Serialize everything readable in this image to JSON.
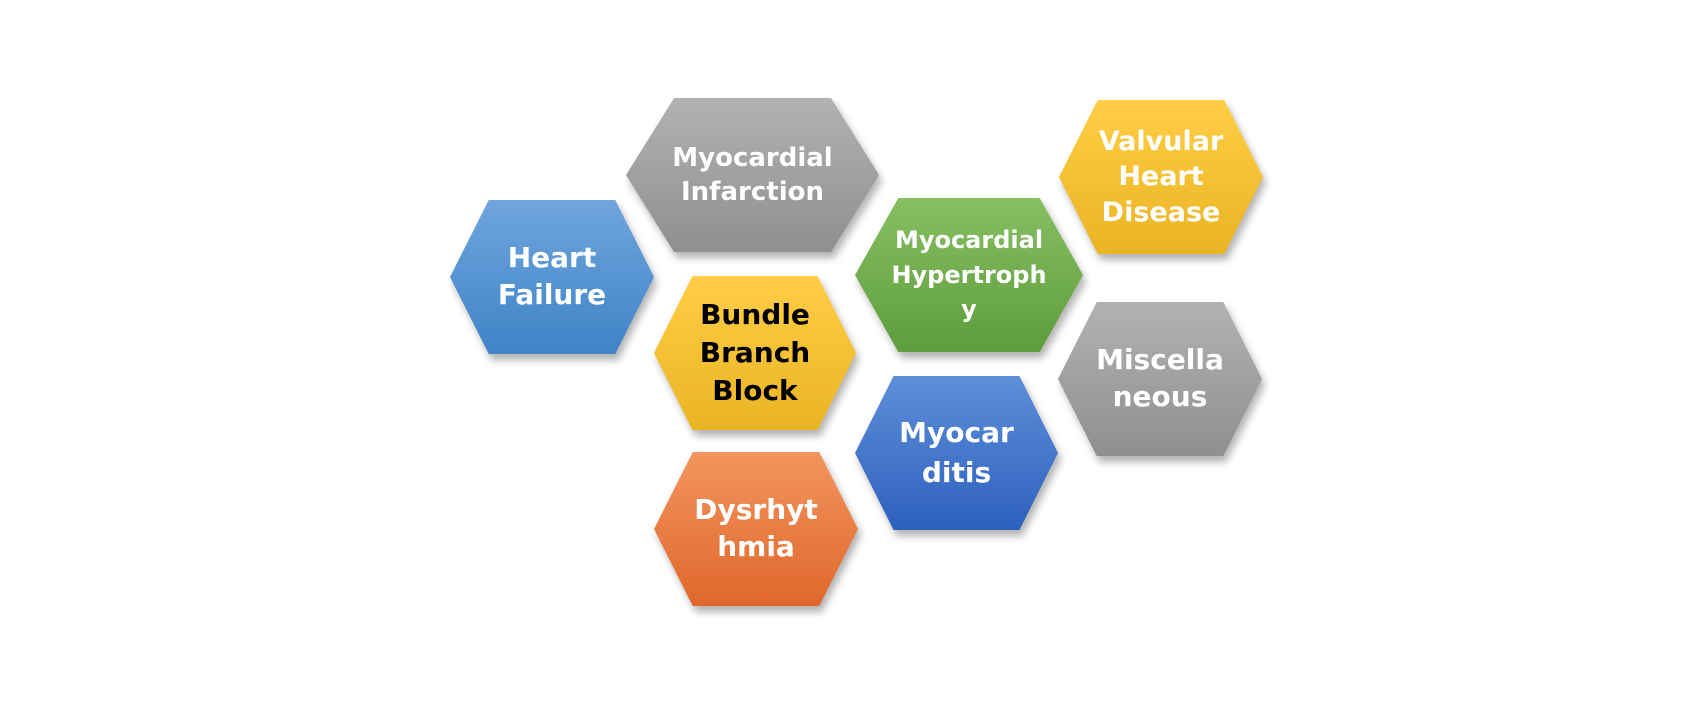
{
  "diagram": {
    "hexagons": [
      {
        "id": "myocardial-infarction",
        "label": "Myocardial\nInfarction",
        "color": "#a3a3a3"
      },
      {
        "id": "heart-failure",
        "label": "Heart\nFailure",
        "color": "#5b9bd5"
      },
      {
        "id": "bundle-branch-block",
        "label": "Bundle\nBranch\nBlock",
        "color": "#ffc000"
      },
      {
        "id": "myocardial-hypertrophy",
        "label": "Myocardial\nHypertroph\ny",
        "color": "#70ad47"
      },
      {
        "id": "valvular-heart-disease",
        "label": "Valvular\nHeart\nDisease",
        "color": "#ffc000"
      },
      {
        "id": "miscellaneous",
        "label": "Miscella\nneous",
        "color": "#a3a3a3"
      },
      {
        "id": "myocarditis",
        "label": "Myocar\nditis",
        "color": "#4472c4"
      },
      {
        "id": "dysrhythmia",
        "label": "Dysrhyt\nhmia",
        "color": "#ed7d31"
      }
    ]
  }
}
